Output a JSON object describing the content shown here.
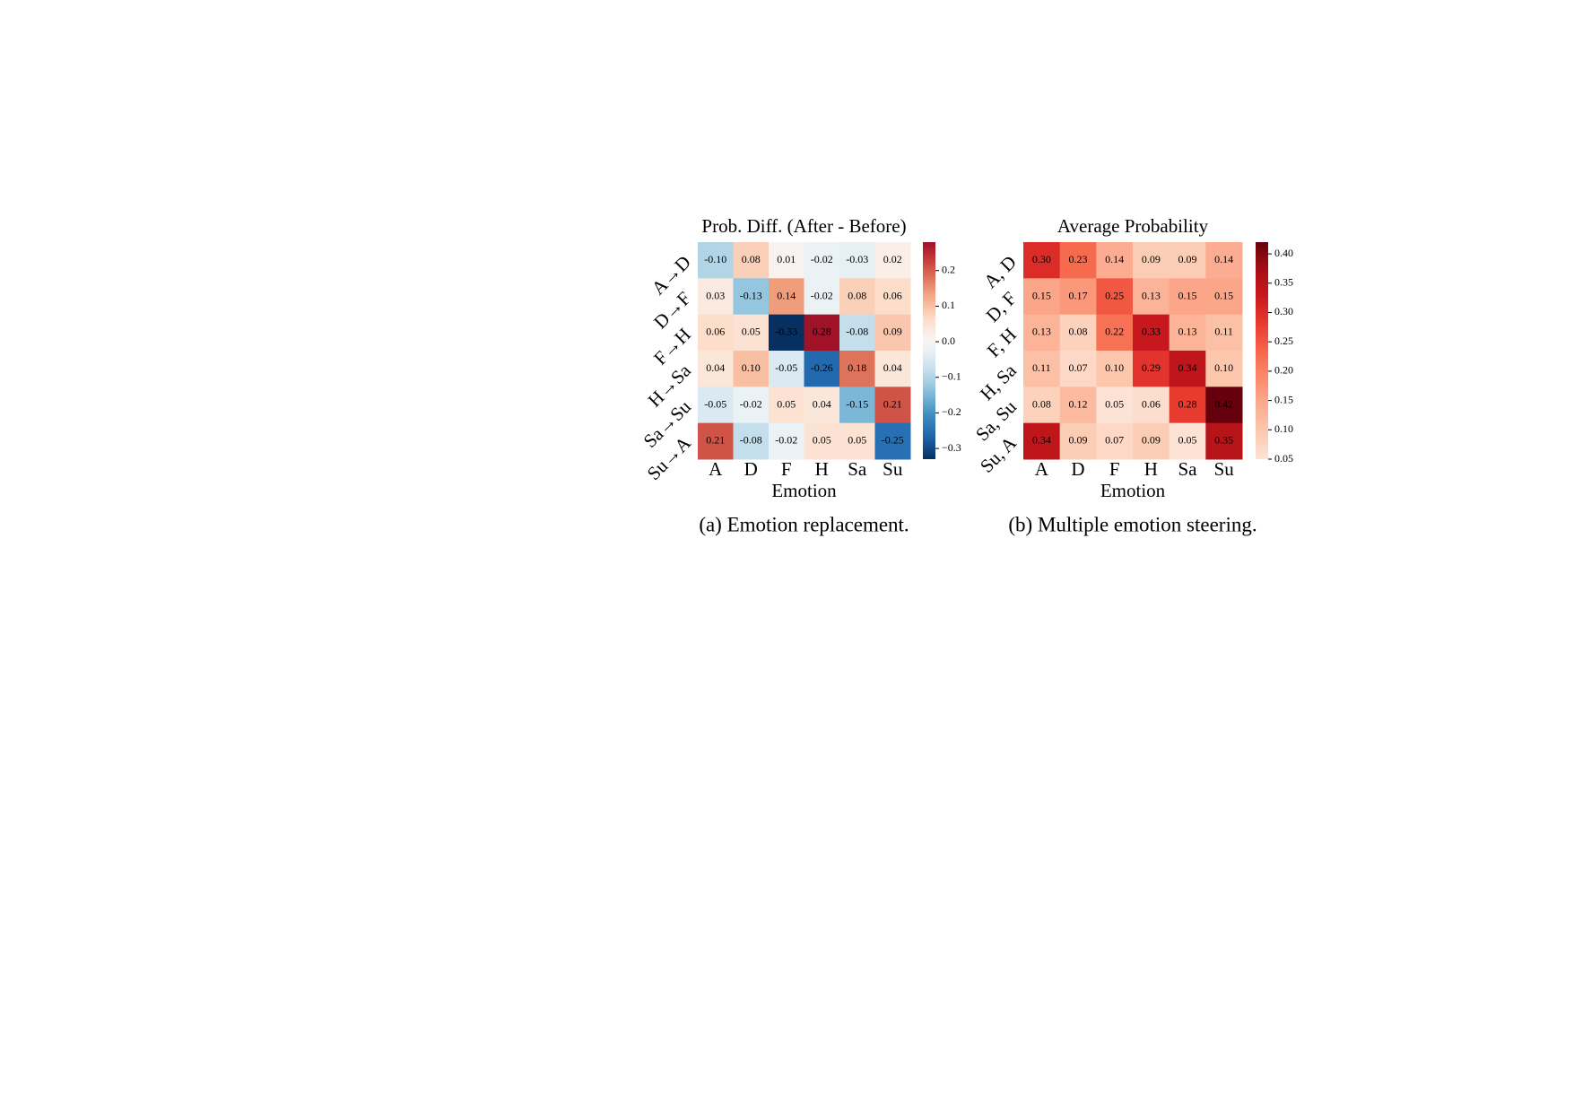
{
  "chart_data": [
    {
      "type": "heatmap",
      "title": "Prob. Diff. (After - Before)",
      "x_label": "Emotion",
      "caption": "(a) Emotion replacement.",
      "x_categories": [
        "A",
        "D",
        "F",
        "H",
        "Sa",
        "Su"
      ],
      "y_categories": [
        "A→D",
        "D→F",
        "F→H",
        "H→Sa",
        "Sa→Su",
        "Su→A"
      ],
      "values": [
        [
          -0.1,
          0.08,
          0.01,
          -0.02,
          -0.03,
          0.02
        ],
        [
          0.03,
          -0.13,
          0.14,
          -0.02,
          0.08,
          0.06
        ],
        [
          0.06,
          0.05,
          -0.33,
          0.28,
          -0.08,
          0.09
        ],
        [
          0.04,
          0.1,
          -0.05,
          -0.26,
          0.18,
          0.04
        ],
        [
          -0.05,
          -0.02,
          0.05,
          0.04,
          -0.15,
          0.21
        ],
        [
          0.21,
          -0.08,
          -0.02,
          0.05,
          0.05,
          -0.25
        ]
      ],
      "value_labels": [
        [
          "-0.10",
          "0.08",
          "0.01",
          "-0.02",
          "-0.03",
          "0.02"
        ],
        [
          "0.03",
          "-0.13",
          "0.14",
          "-0.02",
          "0.08",
          "0.06"
        ],
        [
          "0.06",
          "0.05",
          "-0.33",
          "0.28",
          "-0.08",
          "0.09"
        ],
        [
          "0.04",
          "0.10",
          "-0.05",
          "-0.26",
          "0.18",
          "0.04"
        ],
        [
          "-0.05",
          "-0.02",
          "0.05",
          "0.04",
          "-0.15",
          "0.21"
        ],
        [
          "0.21",
          "-0.08",
          "-0.02",
          "0.05",
          "0.05",
          "-0.25"
        ]
      ],
      "colormap": "RdBu_r",
      "center": 0,
      "clim": [
        -0.33,
        0.28
      ],
      "colorbar_ticks": [
        0.2,
        0.1,
        {
          "value": 0,
          "label": "0.0"
        },
        {
          "value": -0.1,
          "label": "−0.1"
        },
        {
          "value": -0.2,
          "label": "−0.2"
        },
        {
          "value": -0.3,
          "label": "−0.3"
        }
      ]
    },
    {
      "type": "heatmap",
      "title": "Average Probability",
      "x_label": "Emotion",
      "caption": "(b) Multiple emotion steering.",
      "x_categories": [
        "A",
        "D",
        "F",
        "H",
        "Sa",
        "Su"
      ],
      "y_categories": [
        "A, D",
        "D, F",
        "F, H",
        "H, Sa",
        "Sa, Su",
        "Su, A"
      ],
      "values": [
        [
          0.3,
          0.23,
          0.14,
          0.09,
          0.09,
          0.14
        ],
        [
          0.15,
          0.17,
          0.25,
          0.13,
          0.15,
          0.15
        ],
        [
          0.13,
          0.08,
          0.22,
          0.33,
          0.13,
          0.11
        ],
        [
          0.11,
          0.07,
          0.1,
          0.29,
          0.34,
          0.1
        ],
        [
          0.08,
          0.12,
          0.05,
          0.06,
          0.28,
          0.42
        ],
        [
          0.34,
          0.09,
          0.07,
          0.09,
          0.05,
          0.35
        ]
      ],
      "value_labels": [
        [
          "0.30",
          "0.23",
          "0.14",
          "0.09",
          "0.09",
          "0.14"
        ],
        [
          "0.15",
          "0.17",
          "0.25",
          "0.13",
          "0.15",
          "0.15"
        ],
        [
          "0.13",
          "0.08",
          "0.22",
          "0.33",
          "0.13",
          "0.11"
        ],
        [
          "0.11",
          "0.07",
          "0.10",
          "0.29",
          "0.34",
          "0.10"
        ],
        [
          "0.08",
          "0.12",
          "0.05",
          "0.06",
          "0.28",
          "0.42"
        ],
        [
          "0.34",
          "0.09",
          "0.07",
          "0.09",
          "0.05",
          "0.35"
        ]
      ],
      "colormap": "Reds",
      "clim": [
        0.05,
        0.42
      ],
      "colorbar_ticks": [
        {
          "value": 0.4,
          "label": "0.40"
        },
        0.35,
        {
          "value": 0.3,
          "label": "0.30"
        },
        0.25,
        {
          "value": 0.2,
          "label": "0.20"
        },
        0.15,
        {
          "value": 0.1,
          "label": "0.10"
        },
        0.05
      ]
    }
  ]
}
